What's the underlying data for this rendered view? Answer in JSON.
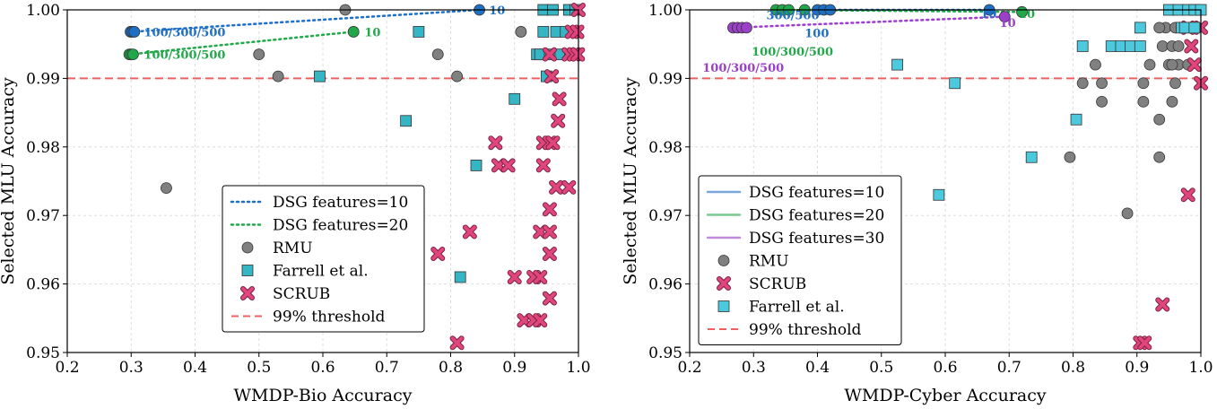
{
  "chart_data": [
    {
      "type": "scatter",
      "xlabel": "WMDP-Bio Accuracy",
      "ylabel": "Selected MLU Accuracy",
      "xlim": [
        0.2,
        1.0
      ],
      "ylim": [
        0.95,
        1.0
      ],
      "xticks": [
        "0.2",
        "0.3",
        "0.4",
        "0.5",
        "0.6",
        "0.7",
        "0.8",
        "0.9",
        "1.0"
      ],
      "yticks": [
        "0.95",
        "0.96",
        "0.97",
        "0.98",
        "0.99",
        "1.00"
      ],
      "grid": true,
      "threshold": {
        "name": "99% threshold",
        "y": 0.99,
        "color": "#f06060"
      },
      "legend_position": "lower-center",
      "legend_line_style": "dotted",
      "dsg_series": [
        {
          "name": "DSG features=10",
          "color": "#1f6fc4",
          "x": [
            0.299,
            0.302,
            0.305,
            0.845
          ],
          "y": [
            0.9968,
            0.9968,
            0.9968,
            1.0
          ]
        },
        {
          "name": "DSG features=20",
          "color": "#22a84a",
          "x": [
            0.297,
            0.3,
            0.303,
            0.648
          ],
          "y": [
            0.9935,
            0.9935,
            0.9935,
            0.9968
          ]
        }
      ],
      "annotations": [
        {
          "text": "100/300/500",
          "x": 0.32,
          "y": 0.9968,
          "color": "#1f6fc4"
        },
        {
          "text": "10",
          "x": 0.86,
          "y": 1.0,
          "color": "#1f6fc4"
        },
        {
          "text": "100/300/500",
          "x": 0.32,
          "y": 0.9935,
          "color": "#22a84a"
        },
        {
          "text": "10",
          "x": 0.665,
          "y": 0.9968,
          "color": "#22a84a"
        }
      ],
      "series": [
        {
          "name": "RMU",
          "marker": "circle",
          "color": "#808080",
          "x": [
            0.635,
            0.5,
            0.53,
            0.355,
            0.78,
            0.81,
            0.91
          ],
          "y": [
            1.0,
            0.9935,
            0.9903,
            0.974,
            0.9935,
            0.9903,
            0.9968
          ]
        },
        {
          "name": "Farrell et al.",
          "marker": "square",
          "color": "#36b5c4",
          "x": [
            0.75,
            0.595,
            0.73,
            0.9,
            0.84,
            0.815,
            0.935,
            0.94,
            0.95,
            0.945,
            0.965,
            0.98,
            0.945,
            0.96,
            0.985,
            0.995,
            0.97,
            0.955
          ],
          "y": [
            0.9968,
            0.9903,
            0.9838,
            0.987,
            0.9773,
            0.961,
            0.9935,
            0.9935,
            0.9903,
            0.9968,
            0.9968,
            0.9968,
            1.0,
            1.0,
            1.0,
            1.0,
            0.9935,
            0.9935
          ]
        },
        {
          "name": "SCRUB",
          "marker": "x",
          "color": "#e0457b",
          "x": [
            0.955,
            0.985,
            0.993,
            0.999,
            0.99,
            0.998,
            0.958,
            0.97,
            0.968,
            0.87,
            0.945,
            0.955,
            0.96,
            0.875,
            0.89,
            0.945,
            0.965,
            0.985,
            0.955,
            0.83,
            0.94,
            0.955,
            0.955,
            0.78,
            0.9,
            0.93,
            0.94,
            0.955,
            0.915,
            0.93,
            0.94,
            0.81,
            1.0
          ],
          "y": [
            0.9935,
            0.9935,
            0.9935,
            0.9935,
            0.9968,
            0.9968,
            0.9903,
            0.987,
            0.9838,
            0.9806,
            0.9806,
            0.9806,
            0.9806,
            0.9773,
            0.9773,
            0.9773,
            0.9741,
            0.9741,
            0.9709,
            0.9676,
            0.9676,
            0.9676,
            0.9644,
            0.9644,
            0.961,
            0.961,
            0.961,
            0.9579,
            0.9547,
            0.9547,
            0.9547,
            0.9514,
            1.0
          ]
        }
      ],
      "legend": [
        "DSG features=10",
        "DSG features=20",
        "RMU",
        "Farrell et al.",
        "SCRUB",
        "99% threshold"
      ]
    },
    {
      "type": "scatter",
      "xlabel": "WMDP-Cyber Accuracy",
      "ylabel": "Selected MLU Accuracy",
      "xlim": [
        0.2,
        1.0
      ],
      "ylim": [
        0.95,
        1.0
      ],
      "xticks": [
        "0.2",
        "0.3",
        "0.4",
        "0.5",
        "0.6",
        "0.7",
        "0.8",
        "0.9",
        "1.0"
      ],
      "yticks": [
        "0.95",
        "0.96",
        "0.97",
        "0.98",
        "0.99",
        "1.00"
      ],
      "grid": true,
      "threshold": {
        "name": "99% threshold",
        "y": 0.99,
        "color": "#f06060"
      },
      "legend_position": "lower-left",
      "legend_line_style": "solid",
      "dsg_series": [
        {
          "name": "DSG features=10",
          "color": "#1f6fc4",
          "x": [
            0.4,
            0.41,
            0.42,
            0.669
          ],
          "y": [
            1.0,
            1.0,
            1.0,
            1.0
          ]
        },
        {
          "name": "DSG features=20",
          "color": "#22a84a",
          "x": [
            0.335,
            0.345,
            0.355,
            0.38,
            0.72
          ],
          "y": [
            1.0,
            1.0,
            1.0,
            1.0,
            0.9997
          ]
        },
        {
          "name": "DSG features=30",
          "color": "#9b40c8",
          "x": [
            0.268,
            0.275,
            0.282,
            0.289,
            0.693
          ],
          "y": [
            0.9974,
            0.9974,
            0.9974,
            0.9974,
            0.999
          ]
        }
      ],
      "annotations": [
        {
          "text": "300/500",
          "x": 0.32,
          "y": 0.9993,
          "color": "#1f6fc4"
        },
        {
          "text": "100",
          "x": 0.38,
          "y": 0.9993,
          "color": "#1f6fc4"
        },
        {
          "text": "10",
          "x": 0.655,
          "y": 0.9995,
          "color": "#1f6fc4"
        },
        {
          "text": "100/300/500",
          "x": 0.297,
          "y": 0.9982,
          "color": "#22a84a"
        },
        {
          "text": "10",
          "x": 0.715,
          "y": 0.9995,
          "color": "#22a84a"
        },
        {
          "text": "100/300/500",
          "x": 0.22,
          "y": 0.9953,
          "color": "#9b40c8"
        },
        {
          "text": "10",
          "x": 0.685,
          "y": 0.9982,
          "color": "#9b40c8"
        }
      ],
      "series": [
        {
          "name": "RMU",
          "marker": "circle",
          "color": "#808080",
          "x": [
            0.795,
            0.885,
            0.935,
            0.835,
            0.815,
            0.845,
            0.845,
            0.91,
            0.91,
            0.92,
            0.935,
            0.94,
            0.945,
            0.95,
            0.955,
            0.955,
            0.96,
            0.965,
            0.97,
            0.965,
            0.96,
            0.98,
            0.975,
            0.935,
            0.955
          ],
          "y": [
            0.9785,
            0.9703,
            0.9785,
            0.992,
            0.9893,
            0.9893,
            0.9866,
            0.9866,
            0.9893,
            0.992,
            0.984,
            0.9947,
            0.9974,
            0.992,
            0.9947,
            0.9866,
            0.9974,
            0.9947,
            0.9974,
            0.992,
            0.9893,
            0.992,
            0.9974,
            0.9974,
            0.992
          ]
        },
        {
          "name": "SCRUB",
          "marker": "x",
          "color": "#e0457b",
          "x": [
            0.98,
            0.985,
            0.99,
            1.0,
            0.98,
            0.94,
            0.905,
            0.912,
            1.0
          ],
          "y": [
            0.9974,
            0.9947,
            0.992,
            0.9893,
            0.973,
            0.957,
            0.9514,
            0.9514,
            0.9974
          ]
        },
        {
          "name": "Farrell et al.",
          "marker": "square",
          "color": "#4cc9dc",
          "x": [
            0.525,
            0.615,
            0.59,
            0.735,
            0.805,
            0.815,
            0.86,
            0.875,
            0.89,
            0.905,
            0.905,
            0.97,
            0.975,
            0.99,
            0.95,
            0.965,
            0.98,
            0.99,
            1.0
          ],
          "y": [
            0.992,
            0.9893,
            0.973,
            0.9785,
            0.984,
            0.9947,
            0.9947,
            0.9947,
            0.9947,
            0.9947,
            0.9974,
            0.9974,
            0.9974,
            0.9974,
            1.0,
            1.0,
            1.0,
            1.0,
            1.0
          ]
        }
      ],
      "legend": [
        "DSG features=10",
        "DSG features=20",
        "DSG features=30",
        "RMU",
        "SCRUB",
        "Farrell et al.",
        "99% threshold"
      ]
    }
  ]
}
